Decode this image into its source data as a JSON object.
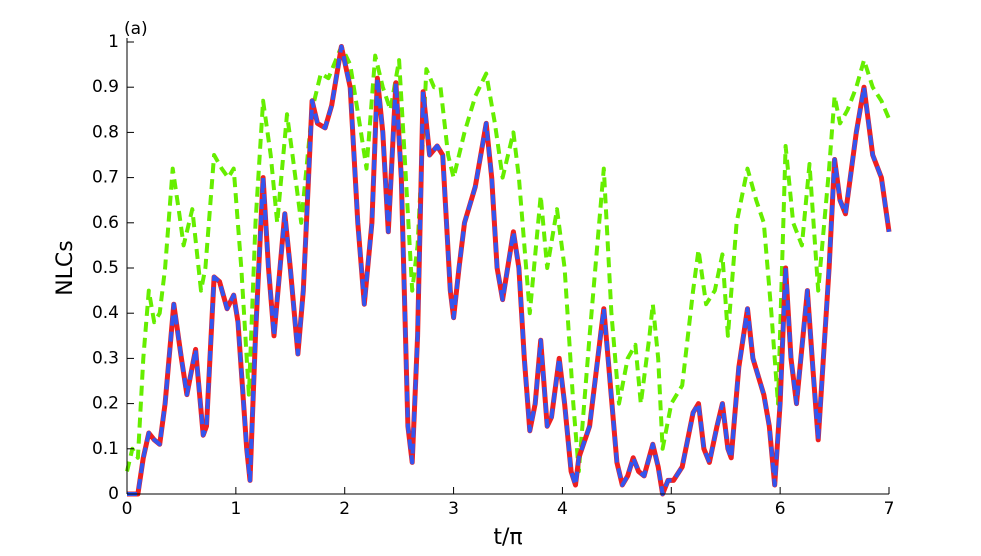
{
  "chart_data": {
    "type": "line",
    "panel_label": "(a)",
    "xlabel": "t/π",
    "ylabel": "NLCs",
    "xlim": [
      0,
      7
    ],
    "xticks": [
      0,
      1,
      2,
      3,
      4,
      5,
      6,
      7
    ],
    "ylim": [
      0,
      1
    ],
    "yticks": [
      0,
      0.1,
      0.2,
      0.3,
      0.4,
      0.5,
      0.6,
      0.7,
      0.8,
      0.9,
      1
    ],
    "series": [
      {
        "color": "#66ee00",
        "dashed": true,
        "x": [
          0,
          0.05,
          0.1,
          0.15,
          0.2,
          0.25,
          0.3,
          0.35,
          0.42,
          0.48,
          0.52,
          0.6,
          0.68,
          0.72,
          0.8,
          0.87,
          0.93,
          0.98,
          1.05,
          1.12,
          1.18,
          1.25,
          1.32,
          1.38,
          1.47,
          1.52,
          1.6,
          1.7,
          1.78,
          1.85,
          1.97,
          2.05,
          2.15,
          2.2,
          2.28,
          2.35,
          2.42,
          2.5,
          2.55,
          2.62,
          2.67,
          2.75,
          2.82,
          2.88,
          2.95,
          3.0,
          3.1,
          3.2,
          3.3,
          3.38,
          3.45,
          3.55,
          3.6,
          3.7,
          3.8,
          3.86,
          3.95,
          4.02,
          4.1,
          4.15,
          4.25,
          4.38,
          4.45,
          4.52,
          4.6,
          4.67,
          4.72,
          4.8,
          4.83,
          4.88,
          4.92,
          5.0,
          5.1,
          5.2,
          5.25,
          5.32,
          5.4,
          5.47,
          5.52,
          5.6,
          5.7,
          5.78,
          5.85,
          5.92,
          5.98,
          6.05,
          6.12,
          6.2,
          6.27,
          6.35,
          6.45,
          6.5,
          6.55,
          6.62,
          6.7,
          6.77,
          6.85,
          6.93,
          7.0
        ],
        "values": [
          0.05,
          0.1,
          0.08,
          0.3,
          0.45,
          0.38,
          0.4,
          0.5,
          0.72,
          0.62,
          0.55,
          0.63,
          0.45,
          0.5,
          0.75,
          0.72,
          0.7,
          0.72,
          0.5,
          0.22,
          0.6,
          0.87,
          0.75,
          0.6,
          0.84,
          0.75,
          0.6,
          0.85,
          0.93,
          0.92,
          0.99,
          0.95,
          0.8,
          0.72,
          0.97,
          0.9,
          0.85,
          0.96,
          0.75,
          0.45,
          0.55,
          0.94,
          0.9,
          0.9,
          0.75,
          0.7,
          0.8,
          0.88,
          0.93,
          0.82,
          0.7,
          0.8,
          0.7,
          0.4,
          0.66,
          0.5,
          0.63,
          0.5,
          0.2,
          0.05,
          0.35,
          0.72,
          0.4,
          0.2,
          0.3,
          0.33,
          0.2,
          0.35,
          0.42,
          0.3,
          0.1,
          0.2,
          0.24,
          0.45,
          0.54,
          0.42,
          0.45,
          0.53,
          0.35,
          0.6,
          0.72,
          0.65,
          0.6,
          0.4,
          0.2,
          0.77,
          0.6,
          0.55,
          0.73,
          0.45,
          0.72,
          0.88,
          0.82,
          0.85,
          0.9,
          0.96,
          0.9,
          0.87,
          0.83
        ]
      },
      {
        "color": "#ee2020",
        "dashed": false,
        "x": [
          0,
          0.1,
          0.15,
          0.2,
          0.25,
          0.3,
          0.35,
          0.43,
          0.5,
          0.55,
          0.63,
          0.7,
          0.73,
          0.8,
          0.85,
          0.92,
          0.98,
          1.02,
          1.1,
          1.13,
          1.18,
          1.25,
          1.3,
          1.35,
          1.45,
          1.5,
          1.57,
          1.62,
          1.7,
          1.75,
          1.82,
          1.88,
          1.97,
          2.05,
          2.12,
          2.18,
          2.25,
          2.3,
          2.35,
          2.4,
          2.47,
          2.52,
          2.58,
          2.62,
          2.67,
          2.72,
          2.78,
          2.85,
          2.9,
          2.97,
          3.0,
          3.05,
          3.1,
          3.2,
          3.3,
          3.35,
          3.4,
          3.45,
          3.55,
          3.6,
          3.65,
          3.7,
          3.75,
          3.8,
          3.86,
          3.9,
          3.97,
          4.02,
          4.08,
          4.12,
          4.15,
          4.25,
          4.35,
          4.38,
          4.42,
          4.5,
          4.55,
          4.6,
          4.65,
          4.7,
          4.75,
          4.83,
          4.88,
          4.92,
          4.97,
          5.02,
          5.1,
          5.2,
          5.25,
          5.3,
          5.35,
          5.42,
          5.47,
          5.52,
          5.55,
          5.62,
          5.7,
          5.75,
          5.85,
          5.9,
          5.95,
          6.0,
          6.05,
          6.1,
          6.15,
          6.25,
          6.3,
          6.35,
          6.45,
          6.5,
          6.55,
          6.6,
          6.7,
          6.77,
          6.85,
          6.93,
          7.0
        ],
        "values": [
          0,
          0,
          0.08,
          0.135,
          0.12,
          0.11,
          0.2,
          0.42,
          0.3,
          0.22,
          0.32,
          0.13,
          0.15,
          0.48,
          0.47,
          0.41,
          0.44,
          0.38,
          0.1,
          0.03,
          0.35,
          0.7,
          0.5,
          0.35,
          0.62,
          0.5,
          0.31,
          0.45,
          0.87,
          0.82,
          0.81,
          0.86,
          0.99,
          0.9,
          0.6,
          0.42,
          0.6,
          0.92,
          0.8,
          0.58,
          0.91,
          0.7,
          0.15,
          0.07,
          0.35,
          0.89,
          0.75,
          0.77,
          0.75,
          0.45,
          0.39,
          0.5,
          0.6,
          0.68,
          0.82,
          0.7,
          0.5,
          0.43,
          0.58,
          0.5,
          0.3,
          0.14,
          0.2,
          0.34,
          0.15,
          0.17,
          0.3,
          0.2,
          0.05,
          0.02,
          0.08,
          0.15,
          0.35,
          0.41,
          0.3,
          0.07,
          0.02,
          0.04,
          0.08,
          0.05,
          0.04,
          0.11,
          0.06,
          0,
          0.03,
          0.03,
          0.06,
          0.18,
          0.2,
          0.1,
          0.07,
          0.15,
          0.2,
          0.1,
          0.08,
          0.28,
          0.41,
          0.3,
          0.22,
          0.15,
          0.02,
          0.2,
          0.5,
          0.3,
          0.2,
          0.45,
          0.28,
          0.12,
          0.5,
          0.74,
          0.65,
          0.62,
          0.8,
          0.9,
          0.75,
          0.7,
          0.58
        ]
      },
      {
        "color": "#3355ee",
        "dashed": true,
        "x": [
          0,
          0.1,
          0.15,
          0.2,
          0.25,
          0.3,
          0.35,
          0.43,
          0.5,
          0.55,
          0.63,
          0.7,
          0.73,
          0.8,
          0.85,
          0.92,
          0.98,
          1.02,
          1.1,
          1.13,
          1.18,
          1.25,
          1.3,
          1.35,
          1.45,
          1.5,
          1.57,
          1.62,
          1.7,
          1.75,
          1.82,
          1.88,
          1.97,
          2.05,
          2.12,
          2.18,
          2.25,
          2.3,
          2.35,
          2.4,
          2.47,
          2.52,
          2.58,
          2.62,
          2.67,
          2.72,
          2.78,
          2.85,
          2.9,
          2.97,
          3.0,
          3.05,
          3.1,
          3.2,
          3.3,
          3.35,
          3.4,
          3.45,
          3.55,
          3.6,
          3.65,
          3.7,
          3.75,
          3.8,
          3.86,
          3.9,
          3.97,
          4.02,
          4.08,
          4.12,
          4.15,
          4.25,
          4.35,
          4.38,
          4.42,
          4.5,
          4.55,
          4.6,
          4.65,
          4.7,
          4.75,
          4.83,
          4.88,
          4.92,
          4.97,
          5.02,
          5.1,
          5.2,
          5.25,
          5.3,
          5.35,
          5.42,
          5.47,
          5.52,
          5.55,
          5.62,
          5.7,
          5.75,
          5.85,
          5.9,
          5.95,
          6.0,
          6.05,
          6.1,
          6.15,
          6.25,
          6.3,
          6.35,
          6.45,
          6.5,
          6.55,
          6.6,
          6.7,
          6.77,
          6.85,
          6.93,
          7.0
        ],
        "values": [
          0,
          0,
          0.08,
          0.135,
          0.12,
          0.11,
          0.2,
          0.42,
          0.3,
          0.22,
          0.32,
          0.13,
          0.15,
          0.48,
          0.47,
          0.41,
          0.44,
          0.38,
          0.1,
          0.03,
          0.35,
          0.7,
          0.5,
          0.35,
          0.62,
          0.5,
          0.31,
          0.45,
          0.87,
          0.82,
          0.81,
          0.86,
          0.99,
          0.9,
          0.6,
          0.42,
          0.6,
          0.92,
          0.8,
          0.58,
          0.91,
          0.7,
          0.15,
          0.07,
          0.35,
          0.89,
          0.75,
          0.77,
          0.75,
          0.45,
          0.39,
          0.5,
          0.6,
          0.68,
          0.82,
          0.7,
          0.5,
          0.43,
          0.58,
          0.5,
          0.3,
          0.14,
          0.2,
          0.34,
          0.15,
          0.17,
          0.3,
          0.2,
          0.05,
          0.02,
          0.08,
          0.15,
          0.35,
          0.41,
          0.3,
          0.07,
          0.02,
          0.04,
          0.08,
          0.05,
          0.04,
          0.11,
          0.06,
          0,
          0.03,
          0.03,
          0.06,
          0.18,
          0.2,
          0.1,
          0.07,
          0.15,
          0.2,
          0.1,
          0.08,
          0.28,
          0.41,
          0.3,
          0.22,
          0.15,
          0.02,
          0.2,
          0.5,
          0.3,
          0.2,
          0.45,
          0.28,
          0.12,
          0.5,
          0.74,
          0.65,
          0.62,
          0.8,
          0.9,
          0.75,
          0.7,
          0.58
        ]
      }
    ]
  }
}
